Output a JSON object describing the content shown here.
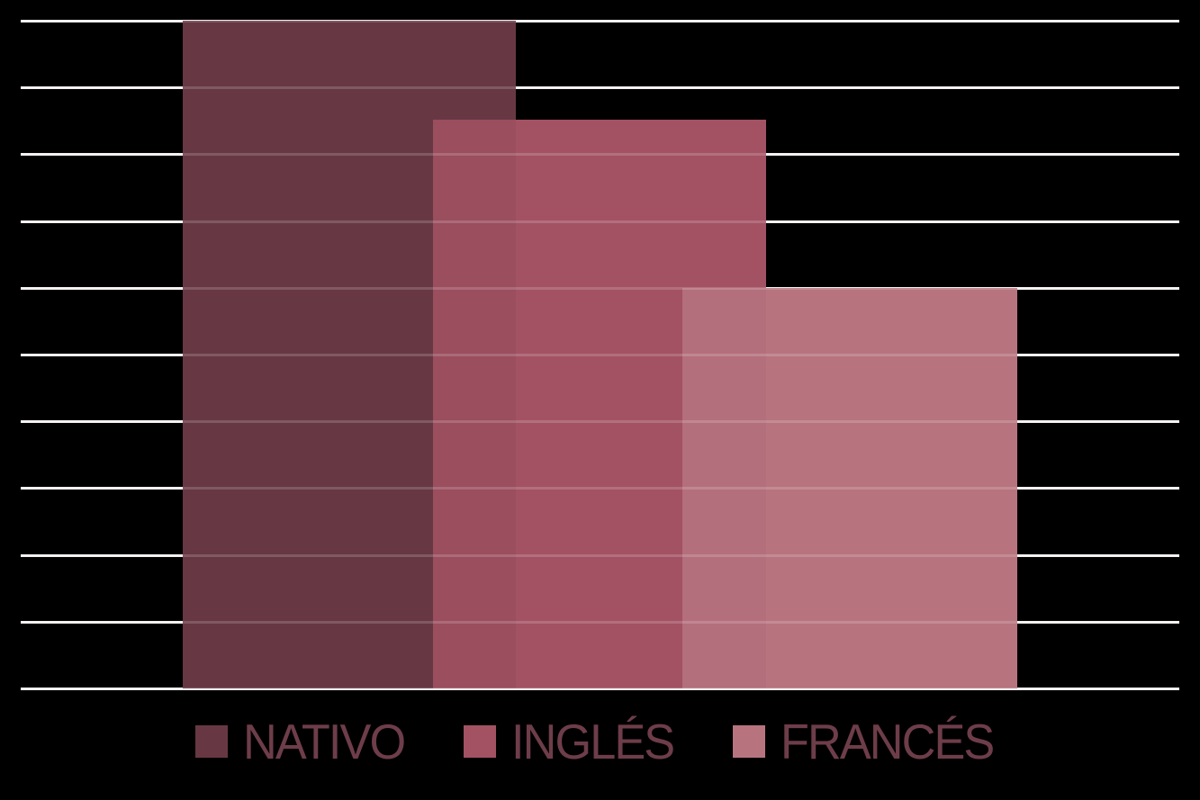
{
  "chart_data": {
    "type": "bar",
    "title": "",
    "series": [
      {
        "name": "NATIVO",
        "value": 100,
        "color": "#673843"
      },
      {
        "name": "INGLÉS",
        "value": 85.2,
        "color": "#A35263"
      },
      {
        "name": "FRANCÉS",
        "value": 60,
        "color": "#B7747F"
      }
    ],
    "overlap_blend_colors": [
      "#9A4E5E",
      "#B46F7C"
    ],
    "ylim": [
      0,
      100
    ],
    "gridline_step": 10,
    "gridlines_visible": true,
    "axis_tick_labels_visible": false,
    "legend_position": "bottom",
    "background_color": "#000000",
    "gridline_color": "#F3EFEF"
  },
  "legend": {
    "items": [
      {
        "label": "NATIVO"
      },
      {
        "label": "INGLÉS"
      },
      {
        "label": "FRANCÉS"
      }
    ],
    "text_color": "#6E3D4A"
  }
}
